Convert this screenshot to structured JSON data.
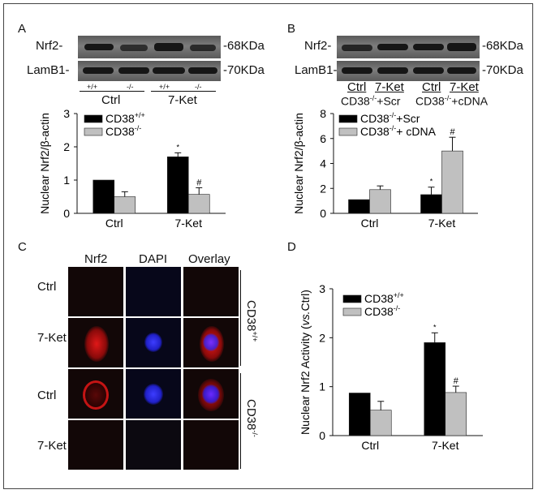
{
  "panels": {
    "A": {
      "letter": "A",
      "blot": {
        "rows": [
          "Nrf2-",
          "LamB1-"
        ],
        "kda": [
          "-68KDa",
          "-70KDa"
        ],
        "genotypes": [
          "+/+",
          "-/-",
          "+/+",
          "-/-"
        ],
        "groups": [
          "Ctrl",
          "7-Ket"
        ]
      },
      "chart_data": {
        "type": "bar",
        "categories": [
          "Ctrl",
          "7-Ket"
        ],
        "series": [
          {
            "name": "CD38+/+",
            "values": [
              1.0,
              1.7
            ],
            "errors": [
              0.0,
              0.12
            ],
            "color": "#000000"
          },
          {
            "name": "CD38-/-",
            "values": [
              0.5,
              0.57
            ],
            "errors": [
              0.15,
              0.2
            ],
            "color": "#c0c0c0"
          }
        ],
        "ylabel": "Nuclear Nrf2/β-actin",
        "ylim": [
          0,
          3
        ],
        "yticks": [
          "0",
          "1",
          "2",
          "3"
        ],
        "annotations": [
          {
            "category": "7-Ket",
            "series": 0,
            "text": "*"
          },
          {
            "category": "7-Ket",
            "series": 1,
            "text": "#"
          }
        ],
        "legend": [
          "CD38",
          "CD38"
        ],
        "legend_sup": [
          "+/+",
          "-/-"
        ],
        "legend_position": "top-left"
      }
    },
    "B": {
      "letter": "B",
      "blot": {
        "rows": [
          "Nrf2-",
          "LamB1-"
        ],
        "kda": [
          "-68KDa",
          "-70KDa"
        ],
        "groups": [
          "Ctrl",
          "7-Ket",
          "Ctrl",
          "7-Ket"
        ],
        "conditions": [
          "CD38",
          "+Scr",
          "CD38",
          "+cDNA"
        ],
        "condition_sup": [
          "-/-",
          "-/-"
        ]
      },
      "chart_data": {
        "type": "bar",
        "categories": [
          "Ctrl",
          "7-Ket"
        ],
        "series": [
          {
            "name": "CD38-/-+Scr",
            "values": [
              1.1,
              1.5
            ],
            "errors": [
              0.0,
              0.6
            ],
            "color": "#000000"
          },
          {
            "name": "CD38-/-+ cDNA",
            "values": [
              1.9,
              5.0
            ],
            "errors": [
              0.3,
              1.1
            ],
            "color": "#c0c0c0"
          }
        ],
        "ylabel": "Nuclear Nrf2/β-actin",
        "ylim": [
          0,
          8
        ],
        "yticks": [
          "0",
          "2",
          "4",
          "6",
          "8"
        ],
        "annotations": [
          {
            "category": "7-Ket",
            "series": 0,
            "text": "*"
          },
          {
            "category": "7-Ket",
            "series": 1,
            "text": "#"
          }
        ],
        "legend": [
          "CD38",
          "CD38"
        ],
        "legend_sup": [
          "-/-",
          "-/-"
        ],
        "legend_suffix": [
          "+Scr",
          "+ cDNA"
        ],
        "legend_position": "top-left"
      }
    },
    "C": {
      "letter": "C",
      "columns": [
        "Nrf2",
        "DAPI",
        "Overlay"
      ],
      "rows": [
        "Ctrl",
        "7-Ket",
        "Ctrl",
        "7-Ket"
      ],
      "groups": [
        "CD38",
        "CD38"
      ],
      "group_sup": [
        "+/+",
        "-/-"
      ]
    },
    "D": {
      "letter": "D",
      "chart_data": {
        "type": "bar",
        "categories": [
          "Ctrl",
          "7-Ket"
        ],
        "series": [
          {
            "name": "CD38+/+",
            "values": [
              0.87,
              1.9
            ],
            "errors": [
              0.0,
              0.2
            ],
            "color": "#000000"
          },
          {
            "name": "CD38-/-",
            "values": [
              0.52,
              0.88
            ],
            "errors": [
              0.18,
              0.13
            ],
            "color": "#c0c0c0"
          }
        ],
        "ylabel_pre": "Nuclear Nrf2 Activity (",
        "ylabel_it": "vs.",
        "ylabel_post": "Ctrl)",
        "ylim": [
          0,
          3
        ],
        "yticks": [
          "0",
          "1",
          "2",
          "3"
        ],
        "annotations": [
          {
            "category": "7-Ket",
            "series": 0,
            "text": "*"
          },
          {
            "category": "7-Ket",
            "series": 1,
            "text": "#"
          }
        ],
        "legend": [
          "CD38",
          "CD38"
        ],
        "legend_sup": [
          "+/+",
          "-/-"
        ],
        "legend_position": "top-left"
      }
    }
  }
}
